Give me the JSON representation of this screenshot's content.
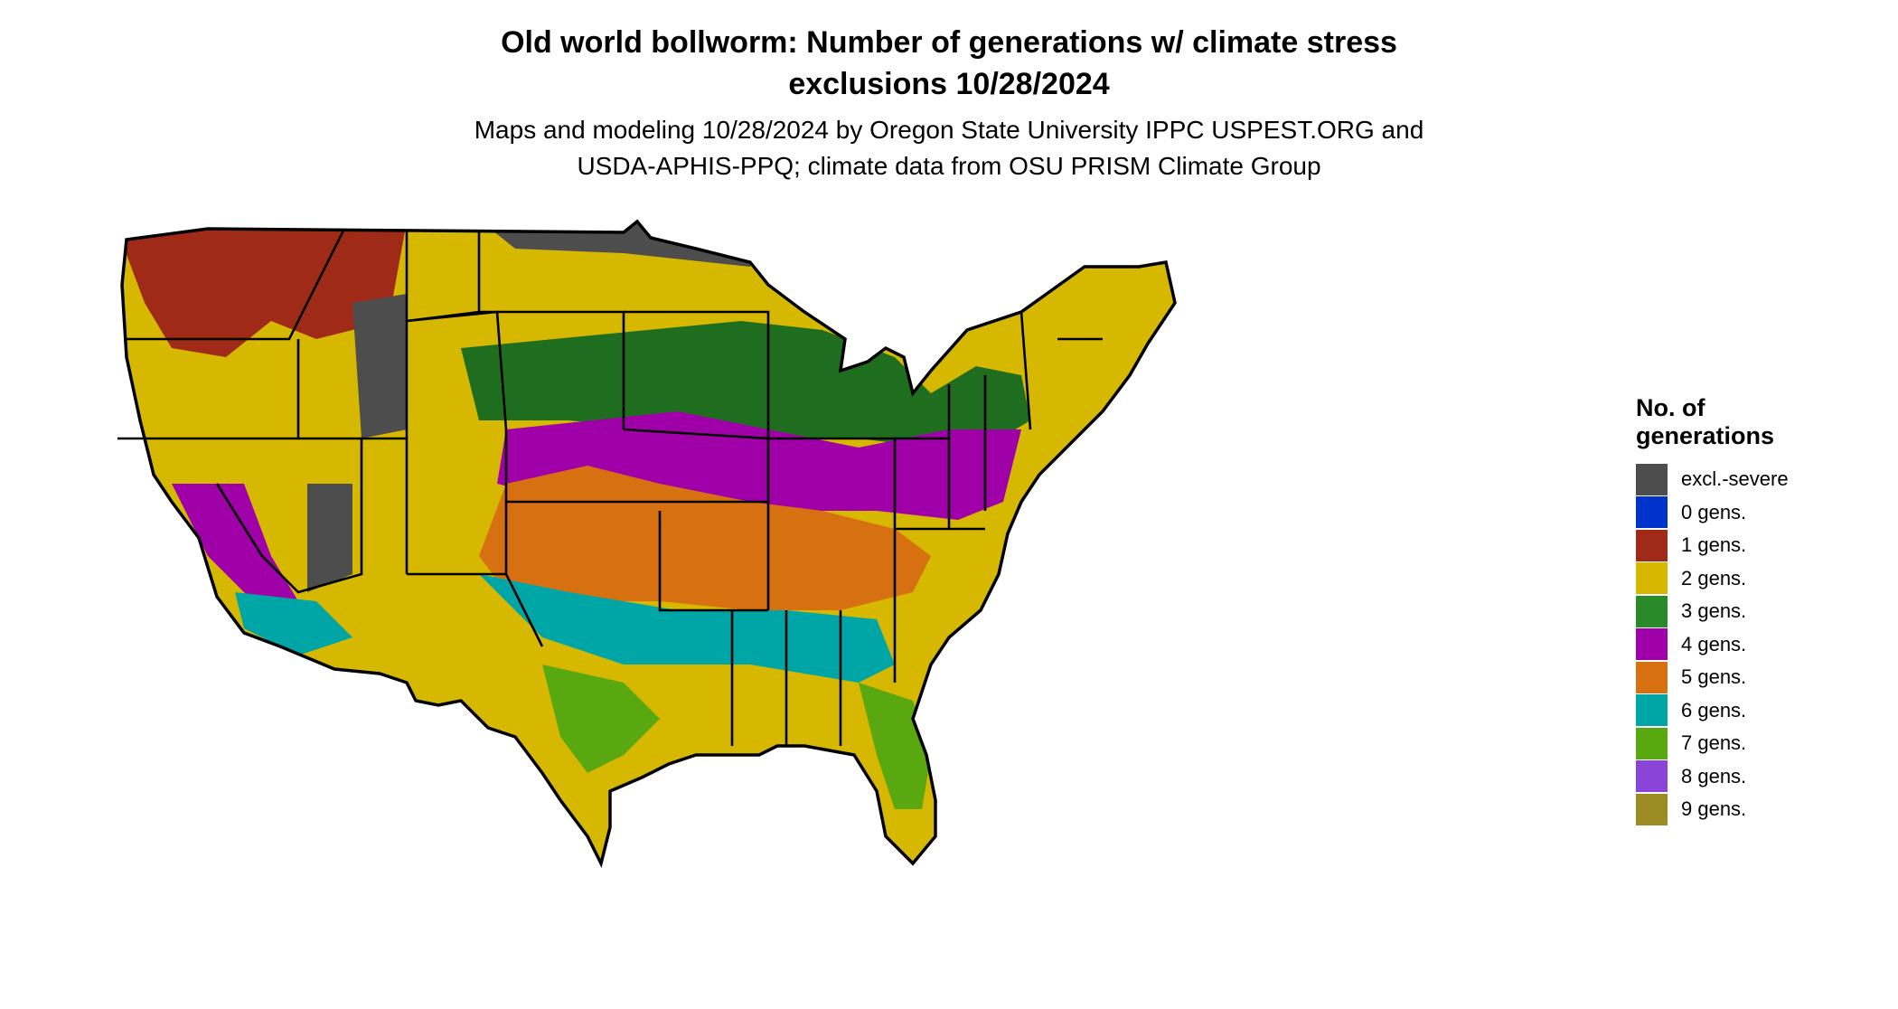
{
  "title": {
    "line1": "Old world bollworm: Number of generations w/ climate stress",
    "line2": "exclusions 10/28/2024"
  },
  "subtitle": {
    "line1": "Maps and modeling 10/28/2024 by Oregon State University IPPC USPEST.ORG and",
    "line2": "USDA-APHIS-PPQ; climate data from OSU PRISM Climate Group"
  },
  "legend": {
    "title_line1": "No. of",
    "title_line2": "generations",
    "items": [
      {
        "label": "excl.-severe",
        "color": "#4d4d4d"
      },
      {
        "label": "0 gens.",
        "color": "#0033cc"
      },
      {
        "label": "1 gens.",
        "color": "#a02a18"
      },
      {
        "label": "2 gens.",
        "color": "#d6b800"
      },
      {
        "label": "3 gens.",
        "color": "#2a8a2a"
      },
      {
        "label": "4 gens.",
        "color": "#a000a8"
      },
      {
        "label": "5 gens.",
        "color": "#d67010"
      },
      {
        "label": "6 gens.",
        "color": "#00a6a6"
      },
      {
        "label": "7 gens.",
        "color": "#5aa810"
      },
      {
        "label": "8 gens.",
        "color": "#8a44d8"
      },
      {
        "label": "9 gens.",
        "color": "#9c8a22"
      }
    ]
  }
}
